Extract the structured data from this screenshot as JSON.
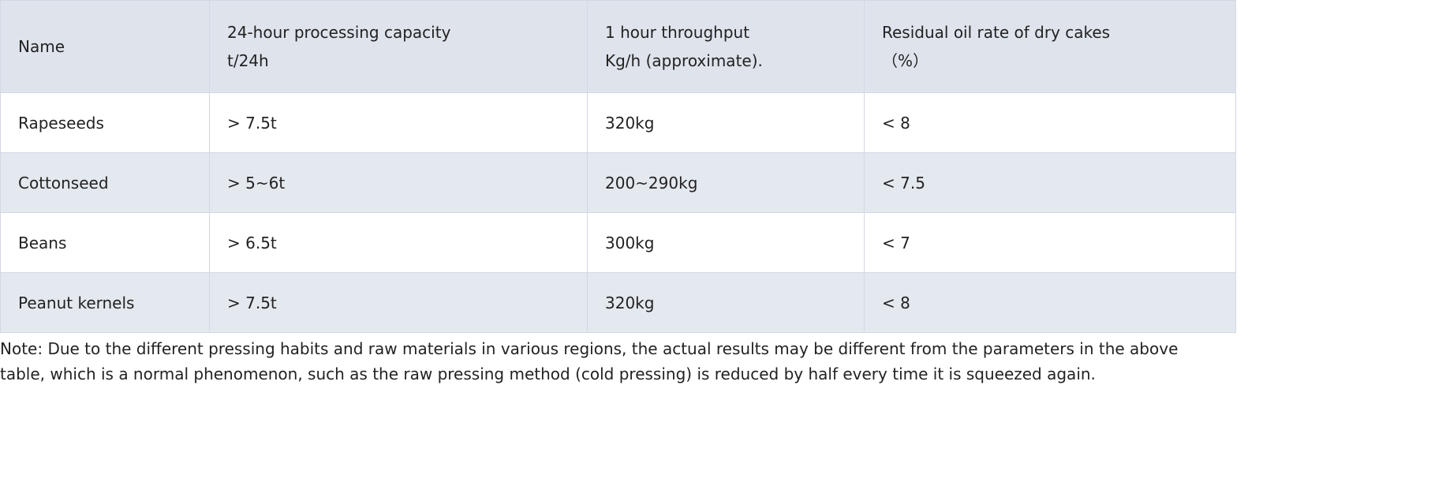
{
  "table": {
    "header": [
      [
        "Name"
      ],
      [
        "24-hour processing capacity",
        "t/24h"
      ],
      [
        "1 hour throughput",
        "Kg/h (approximate)."
      ],
      [
        "Residual oil rate of dry cakes",
        "（%）"
      ]
    ],
    "rows": [
      [
        "Rapeseeds",
        "> 7.5t",
        "320kg",
        "< 8"
      ],
      [
        "Cottonseed",
        "> 5~6t",
        "200~290kg",
        "< 7.5"
      ],
      [
        "Beans",
        "> 6.5t",
        "300kg",
        "< 7"
      ],
      [
        "Peanut kernels",
        "> 7.5t",
        "320kg",
        "< 8"
      ]
    ]
  },
  "note": "Note: Due to the different pressing habits and raw materials in various regions, the actual results may be different from the parameters in the above table, which is a normal phenomenon, such as the raw pressing method (cold pressing) is reduced by half every time it is squeezed again."
}
